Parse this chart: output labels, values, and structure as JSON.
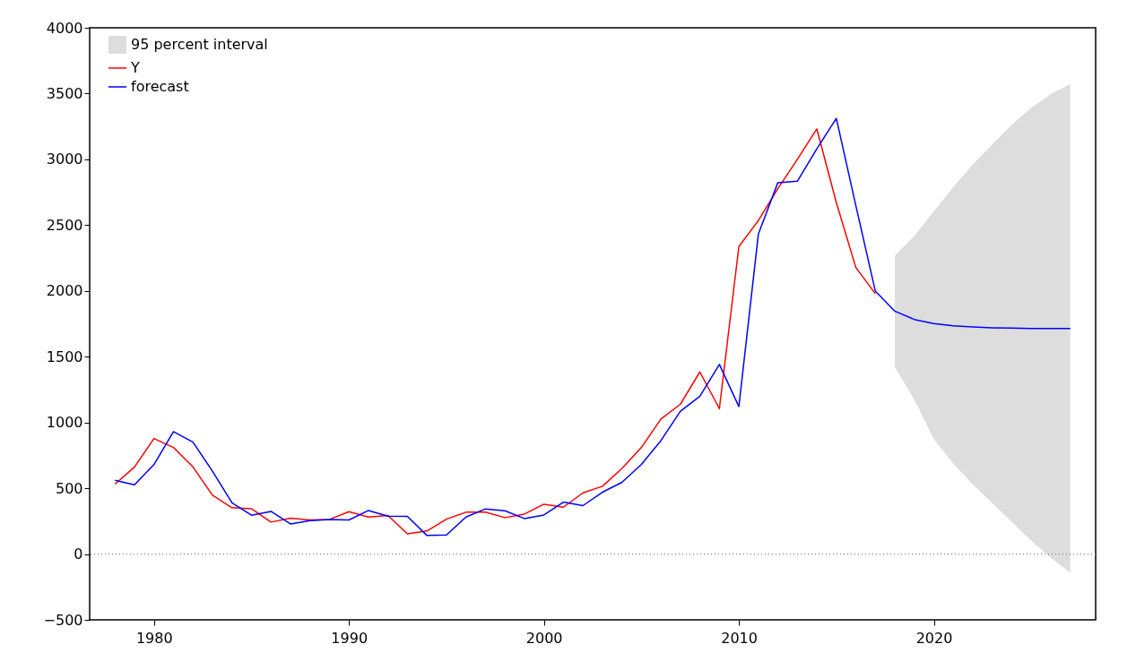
{
  "chart_data": {
    "type": "line",
    "xlim": [
      1976.7,
      2028.3
    ],
    "xticks": [
      1980,
      1990,
      2000,
      2010,
      2020
    ],
    "ylim": [
      -500,
      4000
    ],
    "yticks": [
      -500,
      0,
      500,
      1000,
      1500,
      2000,
      2500,
      3000,
      3500,
      4000
    ],
    "grid": false,
    "legend": "top left",
    "line_style": "solid",
    "marker": "none",
    "ref_lines": [
      {
        "axis": "y",
        "value": 0,
        "color": "#808080",
        "line_style": "dotted"
      }
    ],
    "series": [
      {
        "name": "95 percent interval",
        "type": "area",
        "color": "#dddddd",
        "x": [
          2018,
          2019,
          2020,
          2021,
          2022,
          2023,
          2024,
          2025,
          2026,
          2027
        ],
        "values": [
          null,
          null,
          null,
          null,
          null,
          null,
          null,
          null,
          null,
          null
        ],
        "lower": [
          1422,
          1173,
          873,
          687,
          530,
          386,
          243,
          100,
          -29,
          -143
        ],
        "upper": [
          2267,
          2418,
          2604,
          2790,
          2962,
          3114,
          3263,
          3392,
          3497,
          3572
        ]
      },
      {
        "name": "Y",
        "color": "#ff0000",
        "x": [
          1978,
          1979,
          1980,
          1981,
          1982,
          1983,
          1984,
          1985,
          1986,
          1987,
          1988,
          1989,
          1990,
          1991,
          1992,
          1993,
          1994,
          1995,
          1996,
          1997,
          1998,
          1999,
          2000,
          2001,
          2002,
          2003,
          2004,
          2005,
          2006,
          2007,
          2008,
          2009,
          2010,
          2011,
          2012,
          2013,
          2014,
          2015,
          2016,
          2017
        ],
        "values": [
          531,
          662,
          878,
          810,
          662,
          447,
          352,
          345,
          243,
          272,
          259,
          263,
          322,
          281,
          293,
          154,
          175,
          265,
          318,
          318,
          277,
          304,
          379,
          356,
          465,
          515,
          651,
          810,
          1026,
          1139,
          1384,
          1105,
          2337,
          2535,
          2777,
          3000,
          3231,
          2671,
          2178,
          1979
        ]
      },
      {
        "name": "forecast",
        "color": "#0000ff",
        "x": [
          1978,
          1979,
          1980,
          1981,
          1982,
          1983,
          1984,
          1985,
          1986,
          1987,
          1988,
          1989,
          1990,
          1991,
          1992,
          1993,
          1994,
          1995,
          1996,
          1997,
          1998,
          1999,
          2000,
          2001,
          2002,
          2003,
          2004,
          2005,
          2006,
          2007,
          2008,
          2009,
          2010,
          2011,
          2012,
          2013,
          2014,
          2015,
          2016,
          2017,
          2018,
          2019,
          2020,
          2021,
          2022,
          2023,
          2024,
          2025,
          2026,
          2027
        ],
        "values": [
          560,
          526,
          681,
          930,
          851,
          629,
          390,
          295,
          324,
          229,
          254,
          263,
          259,
          331,
          288,
          286,
          141,
          145,
          281,
          343,
          329,
          270,
          297,
          395,
          368,
          470,
          545,
          681,
          862,
          1085,
          1200,
          1441,
          1121,
          2432,
          2823,
          2834,
          3080,
          3311,
          2648,
          1998,
          1846,
          1783,
          1752,
          1734,
          1726,
          1720,
          1717,
          1714,
          1714,
          1714
        ]
      }
    ]
  }
}
